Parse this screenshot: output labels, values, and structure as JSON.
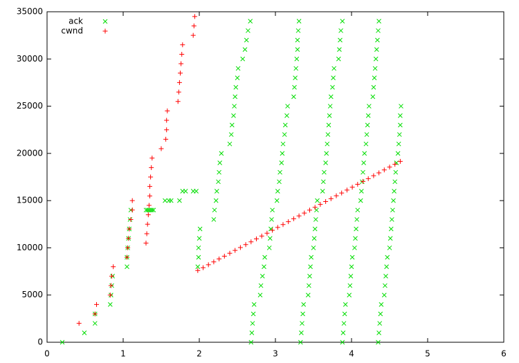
{
  "chart_data": {
    "type": "scatter",
    "xlim": [
      0,
      6
    ],
    "ylim": [
      0,
      35000
    ],
    "xticks": [
      0,
      1,
      2,
      3,
      4,
      5,
      6
    ],
    "yticks": [
      0,
      5000,
      10000,
      15000,
      20000,
      25000,
      30000,
      35000
    ],
    "grid": false,
    "legend": "top-left",
    "series": [
      {
        "name": "ack",
        "color": "#00dd00",
        "marker": "x",
        "x": [
          0.2,
          0.49,
          0.63,
          0.63,
          0.83,
          0.84,
          0.85,
          0.86,
          1.05,
          1.05,
          1.06,
          1.07,
          1.08,
          1.09,
          1.1,
          1.3,
          1.32,
          1.34,
          1.36,
          1.38,
          1.4,
          1.55,
          1.6,
          1.63,
          1.74,
          1.78,
          1.82,
          1.92,
          1.96,
          1.98,
          1.99,
          1.99,
          2.0,
          2.01,
          2.19,
          2.2,
          2.22,
          2.23,
          2.25,
          2.26,
          2.27,
          2.29,
          2.4,
          2.42,
          2.43,
          2.45,
          2.46,
          2.47,
          2.48,
          2.5,
          2.51,
          2.57,
          2.6,
          2.62,
          2.64,
          2.67,
          2.68,
          2.69,
          2.7,
          2.71,
          2.72,
          2.8,
          2.81,
          2.83,
          2.85,
          2.86,
          2.92,
          2.93,
          2.94,
          2.95,
          2.96,
          3.02,
          3.03,
          3.05,
          3.06,
          3.08,
          3.09,
          3.1,
          3.12,
          3.13,
          3.15,
          3.16,
          3.24,
          3.25,
          3.26,
          3.27,
          3.28,
          3.29,
          3.29,
          3.3,
          3.31,
          3.33,
          3.34,
          3.35,
          3.36,
          3.37,
          3.43,
          3.44,
          3.45,
          3.46,
          3.47,
          3.5,
          3.51,
          3.52,
          3.53,
          3.54,
          3.55,
          3.62,
          3.63,
          3.64,
          3.66,
          3.67,
          3.68,
          3.69,
          3.7,
          3.71,
          3.72,
          3.73,
          3.75,
          3.76,
          3.77,
          3.83,
          3.84,
          3.85,
          3.86,
          3.88,
          3.88,
          3.89,
          3.9,
          3.91,
          3.92,
          3.97,
          3.98,
          3.99,
          4.0,
          4.01,
          4.04,
          4.05,
          4.06,
          4.07,
          4.08,
          4.12,
          4.13,
          4.14,
          4.15,
          4.16,
          4.17,
          4.19,
          4.2,
          4.21,
          4.22,
          4.23,
          4.28,
          4.29,
          4.3,
          4.31,
          4.32,
          4.33,
          4.34,
          4.35,
          4.36,
          4.35,
          4.36,
          4.37,
          4.38,
          4.39,
          4.43,
          4.44,
          4.45,
          4.46,
          4.47,
          4.5,
          4.51,
          4.52,
          4.53,
          4.54,
          4.55,
          4.56,
          4.57,
          4.58,
          4.59,
          4.61,
          4.62,
          4.63,
          4.64,
          4.64,
          4.65
        ],
        "values": [
          0,
          1000,
          2000,
          3000,
          4000,
          5000,
          6000,
          7000,
          8000,
          9000,
          10000,
          11000,
          12000,
          13000,
          14000,
          14000,
          14000,
          14000,
          14000,
          14000,
          14000,
          15000,
          15000,
          15000,
          15000,
          16000,
          16000,
          16000,
          16000,
          8000,
          9000,
          10000,
          11000,
          12000,
          13000,
          14000,
          15000,
          16000,
          17000,
          18000,
          19000,
          20000,
          21000,
          22000,
          23000,
          24000,
          25000,
          26000,
          27000,
          28000,
          29000,
          30000,
          31000,
          32000,
          33000,
          34000,
          0,
          1000,
          2000,
          3000,
          4000,
          5000,
          6000,
          7000,
          8000,
          9000,
          10000,
          11000,
          12000,
          13000,
          14000,
          15000,
          16000,
          17000,
          18000,
          19000,
          20000,
          21000,
          22000,
          23000,
          24000,
          25000,
          26000,
          27000,
          28000,
          29000,
          30000,
          31000,
          32000,
          33000,
          34000,
          0,
          1000,
          2000,
          3000,
          4000,
          5000,
          6000,
          7000,
          8000,
          9000,
          10000,
          11000,
          12000,
          13000,
          14000,
          15000,
          16000,
          17000,
          18000,
          19000,
          20000,
          21000,
          22000,
          23000,
          24000,
          25000,
          26000,
          27000,
          28000,
          29000,
          30000,
          31000,
          32000,
          33000,
          34000,
          0,
          1000,
          2000,
          3000,
          4000,
          5000,
          6000,
          7000,
          8000,
          9000,
          10000,
          11000,
          12000,
          13000,
          14000,
          15000,
          16000,
          17000,
          18000,
          19000,
          20000,
          21000,
          22000,
          23000,
          24000,
          25000,
          26000,
          27000,
          28000,
          29000,
          30000,
          31000,
          32000,
          33000,
          34000,
          0,
          1000,
          2000,
          3000,
          4000,
          5000,
          6000,
          7000,
          8000,
          9000,
          10000,
          11000,
          12000,
          13000,
          14000,
          15000,
          16000,
          17000,
          18000,
          19000,
          20000,
          21000,
          22000,
          23000,
          24000,
          25000
        ]
      },
      {
        "name": "cwnd",
        "color": "#ff0000",
        "marker": "+",
        "x": [
          0.42,
          0.63,
          0.65,
          0.83,
          0.84,
          0.85,
          0.87,
          1.05,
          1.06,
          1.07,
          1.08,
          1.1,
          1.12,
          1.12,
          1.3,
          1.31,
          1.32,
          1.33,
          1.34,
          1.35,
          1.35,
          1.36,
          1.37,
          1.38,
          1.5,
          1.56,
          1.57,
          1.57,
          1.58,
          1.72,
          1.73,
          1.74,
          1.75,
          1.76,
          1.77,
          1.78,
          1.92,
          1.93,
          1.94,
          1.98,
          2.05,
          2.12,
          2.19,
          2.26,
          2.33,
          2.4,
          2.47,
          2.54,
          2.61,
          2.68,
          2.75,
          2.82,
          2.89,
          2.96,
          3.03,
          3.1,
          3.17,
          3.24,
          3.31,
          3.38,
          3.45,
          3.52,
          3.59,
          3.66,
          3.73,
          3.8,
          3.87,
          3.94,
          4.01,
          4.08,
          4.15,
          4.22,
          4.29,
          4.36,
          4.43,
          4.5,
          4.57,
          4.64
        ],
        "values": [
          2000,
          3000,
          4000,
          5000,
          6000,
          7000,
          8000,
          9000,
          10000,
          11000,
          12000,
          13000,
          14000,
          15000,
          10500,
          11500,
          12500,
          13500,
          14500,
          15500,
          16500,
          17500,
          18500,
          19500,
          20500,
          21500,
          22500,
          23500,
          24500,
          25500,
          26500,
          27500,
          28500,
          29500,
          30500,
          31500,
          32500,
          33500,
          34500,
          7600,
          7900,
          8210,
          8510,
          8820,
          9120,
          9430,
          9730,
          10030,
          10340,
          10640,
          10950,
          11250,
          11550,
          11860,
          12160,
          12470,
          12770,
          13080,
          13380,
          13680,
          13990,
          14290,
          14600,
          14900,
          15200,
          15510,
          15810,
          16120,
          16420,
          16730,
          17030,
          17330,
          17640,
          17940,
          18250,
          18550,
          18850,
          19160
        ]
      }
    ]
  }
}
